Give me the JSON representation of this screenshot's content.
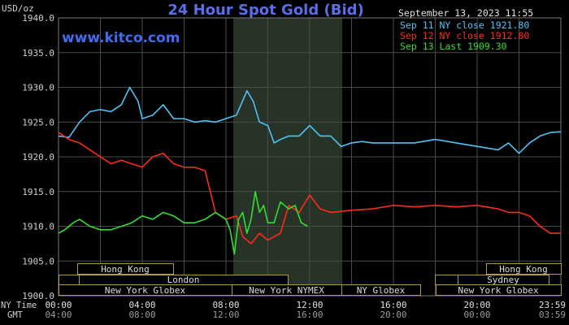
{
  "header": {
    "title": "24 Hour Spot Gold (Bid)",
    "unit": "USD/oz",
    "timestamp": "September 13, 2023 11:55",
    "website": "www.kitco.com"
  },
  "legend": [
    {
      "text": "Sep 11 NY close 1921.80",
      "color": "#4fc3f7"
    },
    {
      "text": "Sep 12 NY close 1912.80",
      "color": "#ff2a1a"
    },
    {
      "text": "Sep 13 Last 1909.30",
      "color": "#33dd33"
    }
  ],
  "time_rows": {
    "ny_label": "NY Time",
    "gmt_label": "GMT",
    "ny_ticks": [
      "00:00",
      "04:00",
      "08:00",
      "12:00",
      "16:00",
      "20:00",
      "23:59"
    ],
    "gmt_ticks": [
      "04:00",
      "08:00",
      "12:00",
      "16:00",
      "20:00",
      "00:00",
      "03:59"
    ]
  },
  "markets": [
    {
      "name": "Hong Kong"
    },
    {
      "name": "London"
    },
    {
      "name": "New York Globex"
    },
    {
      "name": "New York NYMEX"
    },
    {
      "name": "NY Globex"
    },
    {
      "name": "Sydney"
    },
    {
      "name": "Hong Kong"
    },
    {
      "name": "New York Globex"
    }
  ],
  "colors": {
    "background": "#000000",
    "grid": "#4a4a4a",
    "axis_text": "#d0d0d0",
    "title": "#5a6ee8",
    "website": "#3f6df0",
    "highlight": "#2a3a2a",
    "market_box": "#b09a4a"
  },
  "chart_data": {
    "type": "line",
    "title": "24 Hour Spot Gold (Bid)",
    "ylabel": "USD/oz",
    "xlabel": "",
    "ylim": [
      1900,
      1940
    ],
    "xlim": [
      0,
      24
    ],
    "y_ticks": [
      "1900.0",
      "1905.0",
      "1910.0",
      "1915.0",
      "1920.0",
      "1925.0",
      "1930.0",
      "1935.0",
      "1940.0"
    ],
    "grid": true,
    "legend_position": "top-right",
    "series": [
      {
        "name": "Sep 11 NY close 1921.80",
        "x": [
          0,
          0.5,
          1,
          1.5,
          2,
          2.5,
          3,
          3.4,
          3.8,
          4,
          4.5,
          5,
          5.5,
          6,
          6.5,
          7,
          7.5,
          8,
          8.5,
          9,
          9.3,
          9.6,
          10,
          10.3,
          10.6,
          11,
          11.5,
          12,
          12.5,
          13,
          13.5,
          14,
          14.5,
          15,
          16,
          17,
          18,
          19,
          20,
          21,
          21.5,
          22,
          22.5,
          23,
          23.5,
          24
        ],
        "y": [
          1923,
          1922.8,
          1925,
          1926.5,
          1926.8,
          1926.5,
          1927.5,
          1930,
          1928,
          1925.5,
          1926,
          1927.5,
          1925.5,
          1925.5,
          1925,
          1925.2,
          1925,
          1925.5,
          1926,
          1929.5,
          1928,
          1925,
          1924.5,
          1922,
          1922.5,
          1923,
          1923,
          1924.5,
          1923,
          1923,
          1921.5,
          1922,
          1922.2,
          1922,
          1922,
          1922,
          1922.5,
          1922,
          1921.5,
          1921,
          1922,
          1920.5,
          1922,
          1923,
          1923.5,
          1923.6
        ]
      },
      {
        "name": "Sep 12 NY close 1912.80",
        "x": [
          0,
          0.5,
          1,
          1.5,
          2,
          2.5,
          3,
          3.5,
          4,
          4.5,
          5,
          5.5,
          6,
          6.5,
          7,
          7.5,
          8,
          8.5,
          8.8,
          9.2,
          9.6,
          10,
          10.3,
          10.6,
          11,
          11.5,
          12,
          12.5,
          13,
          14,
          15,
          16,
          17,
          18,
          19,
          20,
          21,
          21.5,
          22,
          22.5,
          23,
          23.5,
          24
        ],
        "y": [
          1923.5,
          1922.5,
          1922,
          1921,
          1920,
          1919,
          1919.5,
          1919,
          1918.5,
          1920,
          1920.5,
          1919,
          1918.5,
          1918.5,
          1918,
          1912,
          1911,
          1911.5,
          1908.5,
          1907.5,
          1909,
          1908,
          1908.5,
          1909,
          1913,
          1912,
          1914.5,
          1912.5,
          1912,
          1912.3,
          1912.5,
          1913,
          1912.8,
          1913,
          1912.8,
          1913,
          1912.5,
          1912,
          1912,
          1911.5,
          1910,
          1909,
          1909
        ]
      },
      {
        "name": "Sep 13 Last 1909.30",
        "x": [
          0,
          0.3,
          0.7,
          1,
          1.5,
          2,
          2.5,
          3,
          3.5,
          4,
          4.5,
          5,
          5.5,
          6,
          6.5,
          7,
          7.5,
          8,
          8.2,
          8.4,
          8.6,
          8.8,
          9,
          9.2,
          9.4,
          9.6,
          9.8,
          10,
          10.3,
          10.6,
          11,
          11.3,
          11.6,
          11.9
        ],
        "y": [
          1909,
          1909.5,
          1910.5,
          1911,
          1910,
          1909.5,
          1909.5,
          1910,
          1910.5,
          1911.5,
          1911,
          1912,
          1911.5,
          1910.5,
          1910.5,
          1911,
          1912,
          1911,
          1909.5,
          1906,
          1911,
          1912,
          1909,
          1911,
          1915,
          1912,
          1913,
          1910.5,
          1910.5,
          1913.5,
          1912.5,
          1913,
          1910.5,
          1910
        ]
      }
    ]
  }
}
